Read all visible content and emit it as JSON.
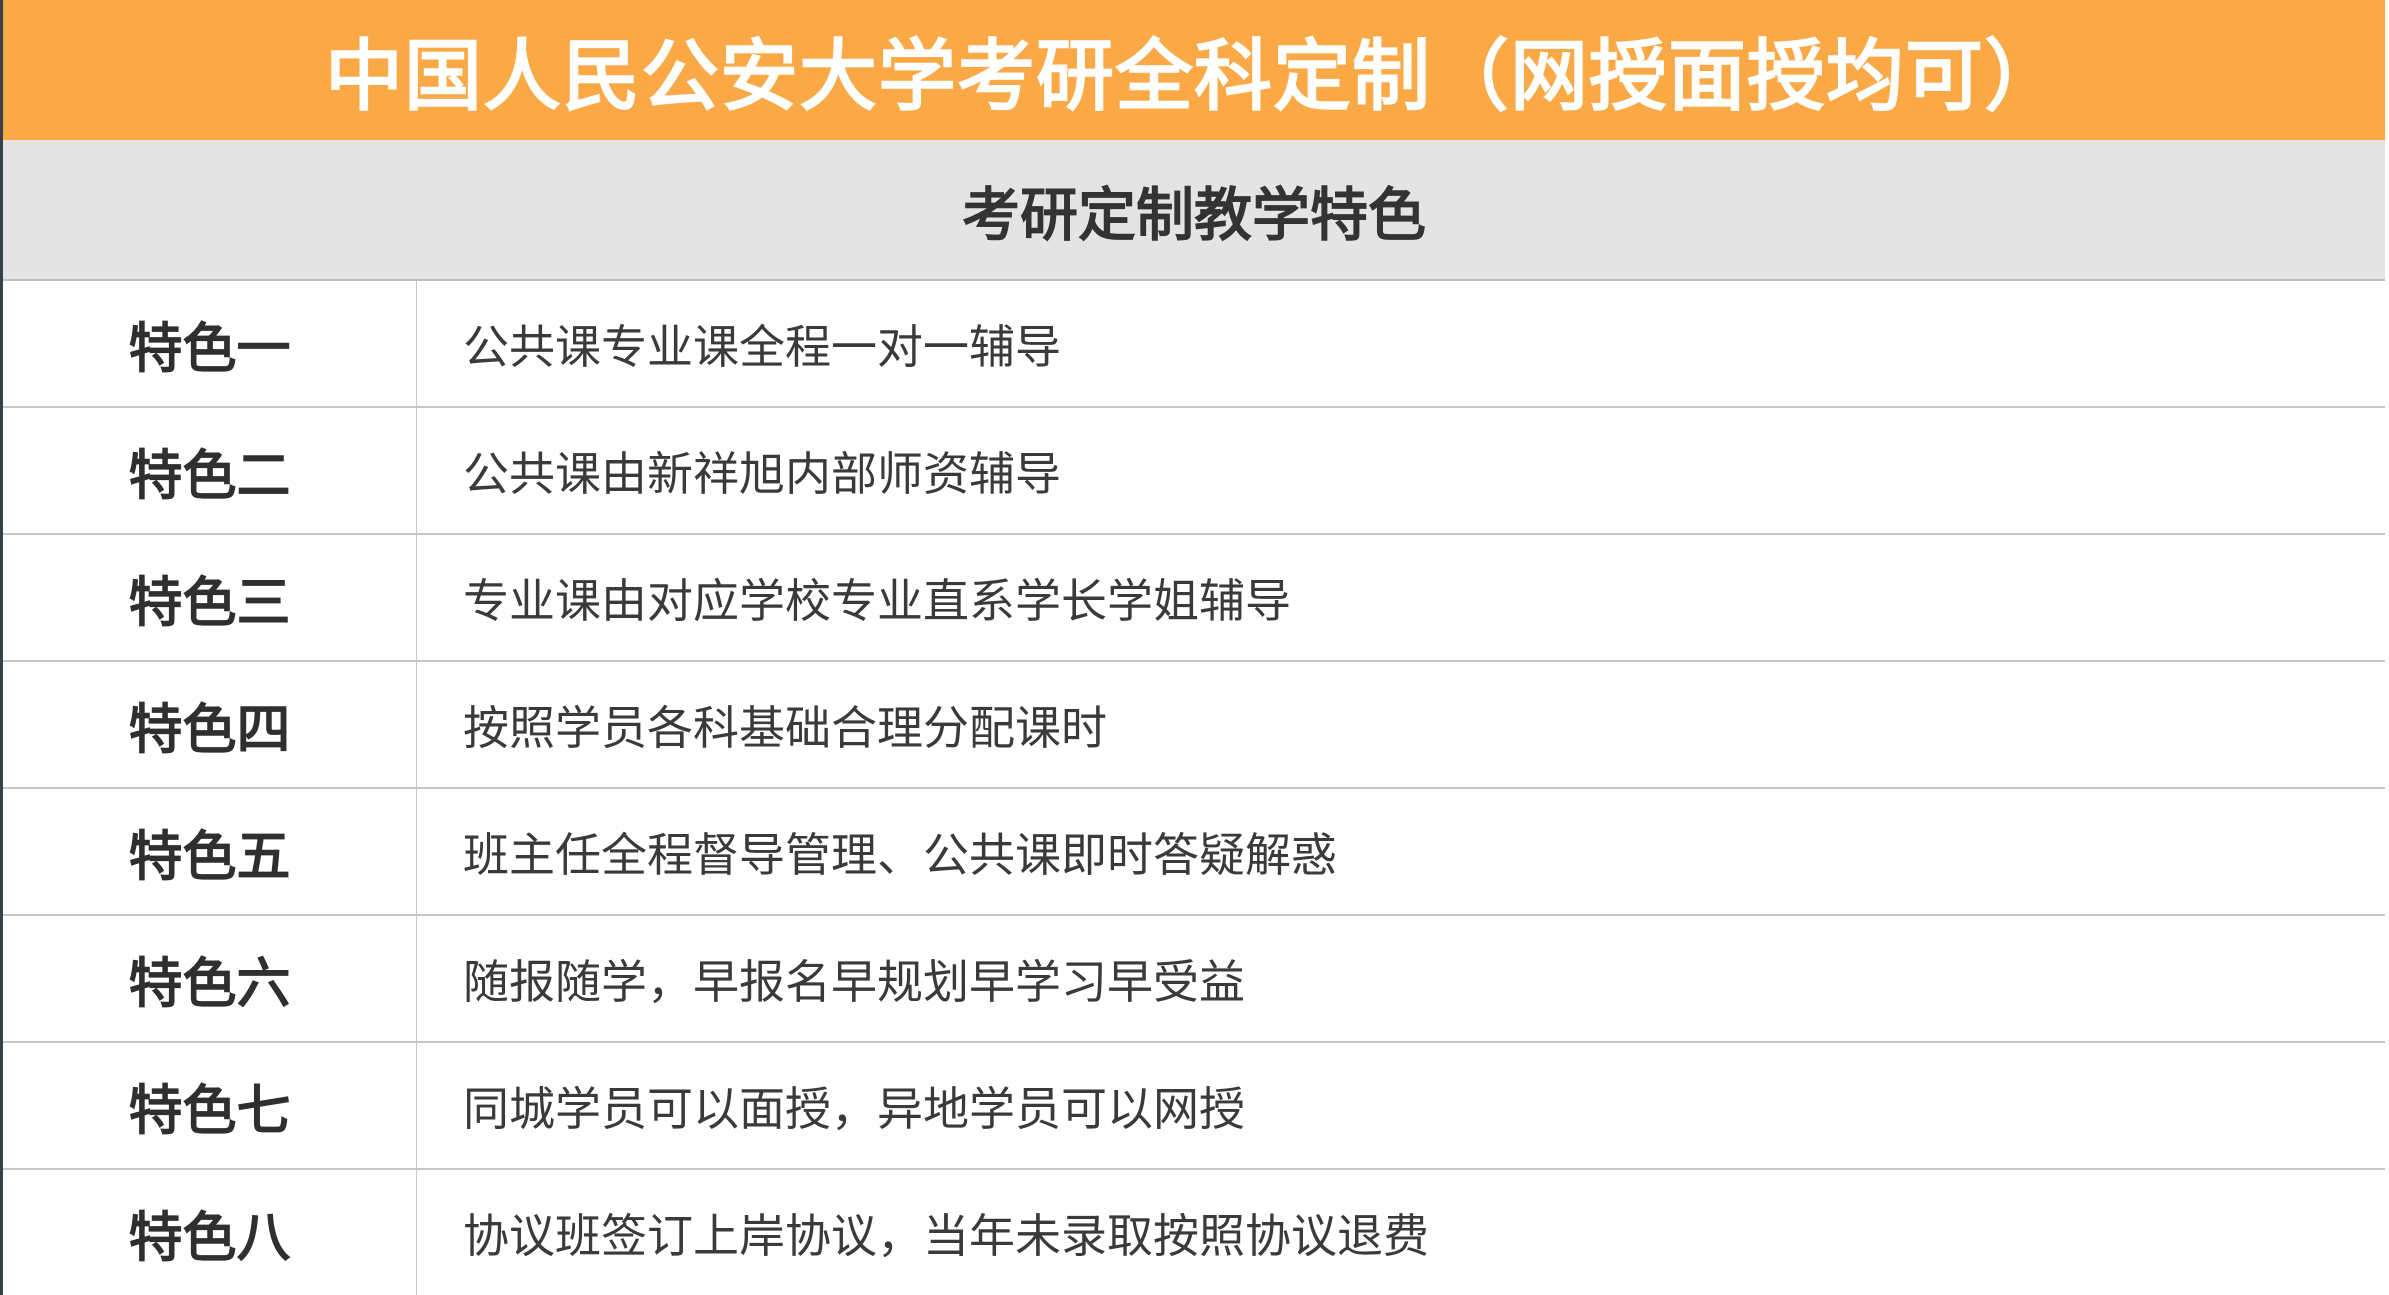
{
  "header": {
    "title": "中国人民公安大学考研全科定制（网授面授均可）",
    "subtitle": "考研定制教学特色"
  },
  "colors": {
    "header_bg": "#FBA946",
    "subheader_bg": "#E4E4E4"
  },
  "rows": [
    {
      "label": "特色一",
      "text": "公共课专业课全程一对一辅导"
    },
    {
      "label": "特色二",
      "text": "公共课由新祥旭内部师资辅导"
    },
    {
      "label": "特色三",
      "text": "专业课由对应学校专业直系学长学姐辅导"
    },
    {
      "label": "特色四",
      "text": "按照学员各科基础合理分配课时"
    },
    {
      "label": "特色五",
      "text": "班主任全程督导管理、公共课即时答疑解惑"
    },
    {
      "label": "特色六",
      "text": "随报随学，早报名早规划早学习早受益"
    },
    {
      "label": "特色七",
      "text": "同城学员可以面授，异地学员可以网授"
    },
    {
      "label": "特色八",
      "text": "协议班签订上岸协议，当年未录取按照协议退费"
    }
  ]
}
